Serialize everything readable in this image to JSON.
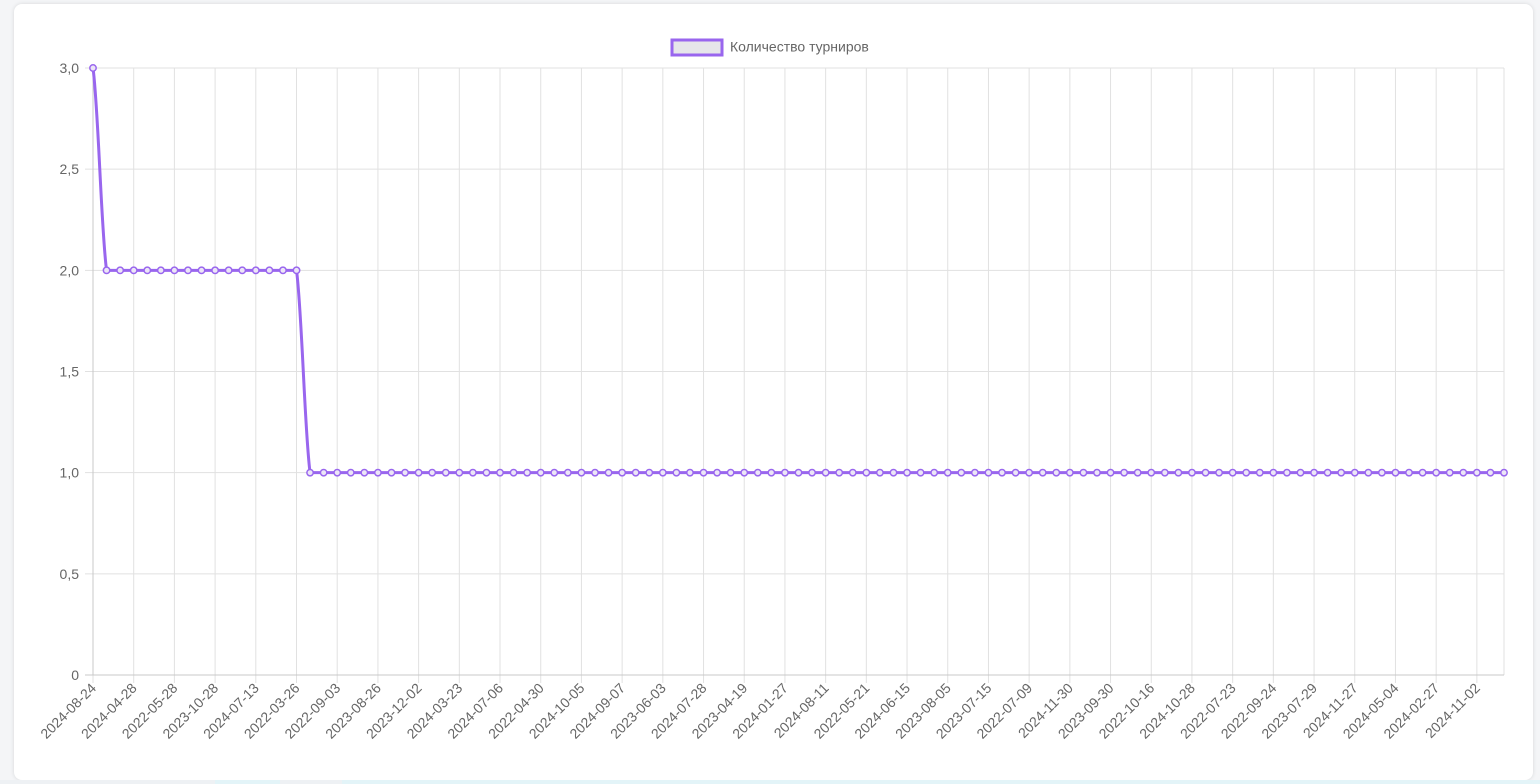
{
  "chart_data": {
    "type": "line",
    "title": "",
    "xlabel": "",
    "ylabel": "",
    "legend": {
      "placement": "top-center"
    },
    "grid": true,
    "ylim": [
      0,
      3
    ],
    "y_ticks": [
      "0",
      "0,5",
      "1,0",
      "1,5",
      "2,0",
      "2,5",
      "3,0"
    ],
    "x_tick_labels": [
      "2024-08-24",
      "2024-04-28",
      "2022-05-28",
      "2023-10-28",
      "2024-07-13",
      "2022-03-26",
      "2022-09-03",
      "2023-08-26",
      "2023-12-02",
      "2024-03-23",
      "2024-07-06",
      "2022-04-30",
      "2024-10-05",
      "2024-09-07",
      "2023-06-03",
      "2024-07-28",
      "2023-04-19",
      "2024-01-27",
      "2024-08-11",
      "2022-05-21",
      "2024-06-15",
      "2023-08-05",
      "2023-07-15",
      "2022-07-09",
      "2024-11-30",
      "2023-09-30",
      "2022-10-16",
      "2024-10-28",
      "2022-07-23",
      "2022-09-24",
      "2023-07-29",
      "2024-11-27",
      "2024-05-04",
      "2024-02-27",
      "2024-11-02"
    ],
    "series": [
      {
        "name": "Количество турниров",
        "color": "#9966ee",
        "values": [
          3,
          2,
          2,
          2,
          2,
          2,
          2,
          2,
          2,
          2,
          2,
          2,
          2,
          2,
          2,
          2,
          1,
          1,
          1,
          1,
          1,
          1,
          1,
          1,
          1,
          1,
          1,
          1,
          1,
          1,
          1,
          1,
          1,
          1,
          1,
          1,
          1,
          1,
          1,
          1,
          1,
          1,
          1,
          1,
          1,
          1,
          1,
          1,
          1,
          1,
          1,
          1,
          1,
          1,
          1,
          1,
          1,
          1,
          1,
          1,
          1,
          1,
          1,
          1,
          1,
          1,
          1,
          1,
          1,
          1,
          1,
          1,
          1,
          1,
          1,
          1,
          1,
          1,
          1,
          1,
          1,
          1,
          1,
          1,
          1,
          1,
          1,
          1,
          1,
          1,
          1,
          1,
          1,
          1,
          1,
          1,
          1,
          1,
          1,
          1,
          1,
          1,
          1,
          1,
          1
        ]
      }
    ]
  }
}
